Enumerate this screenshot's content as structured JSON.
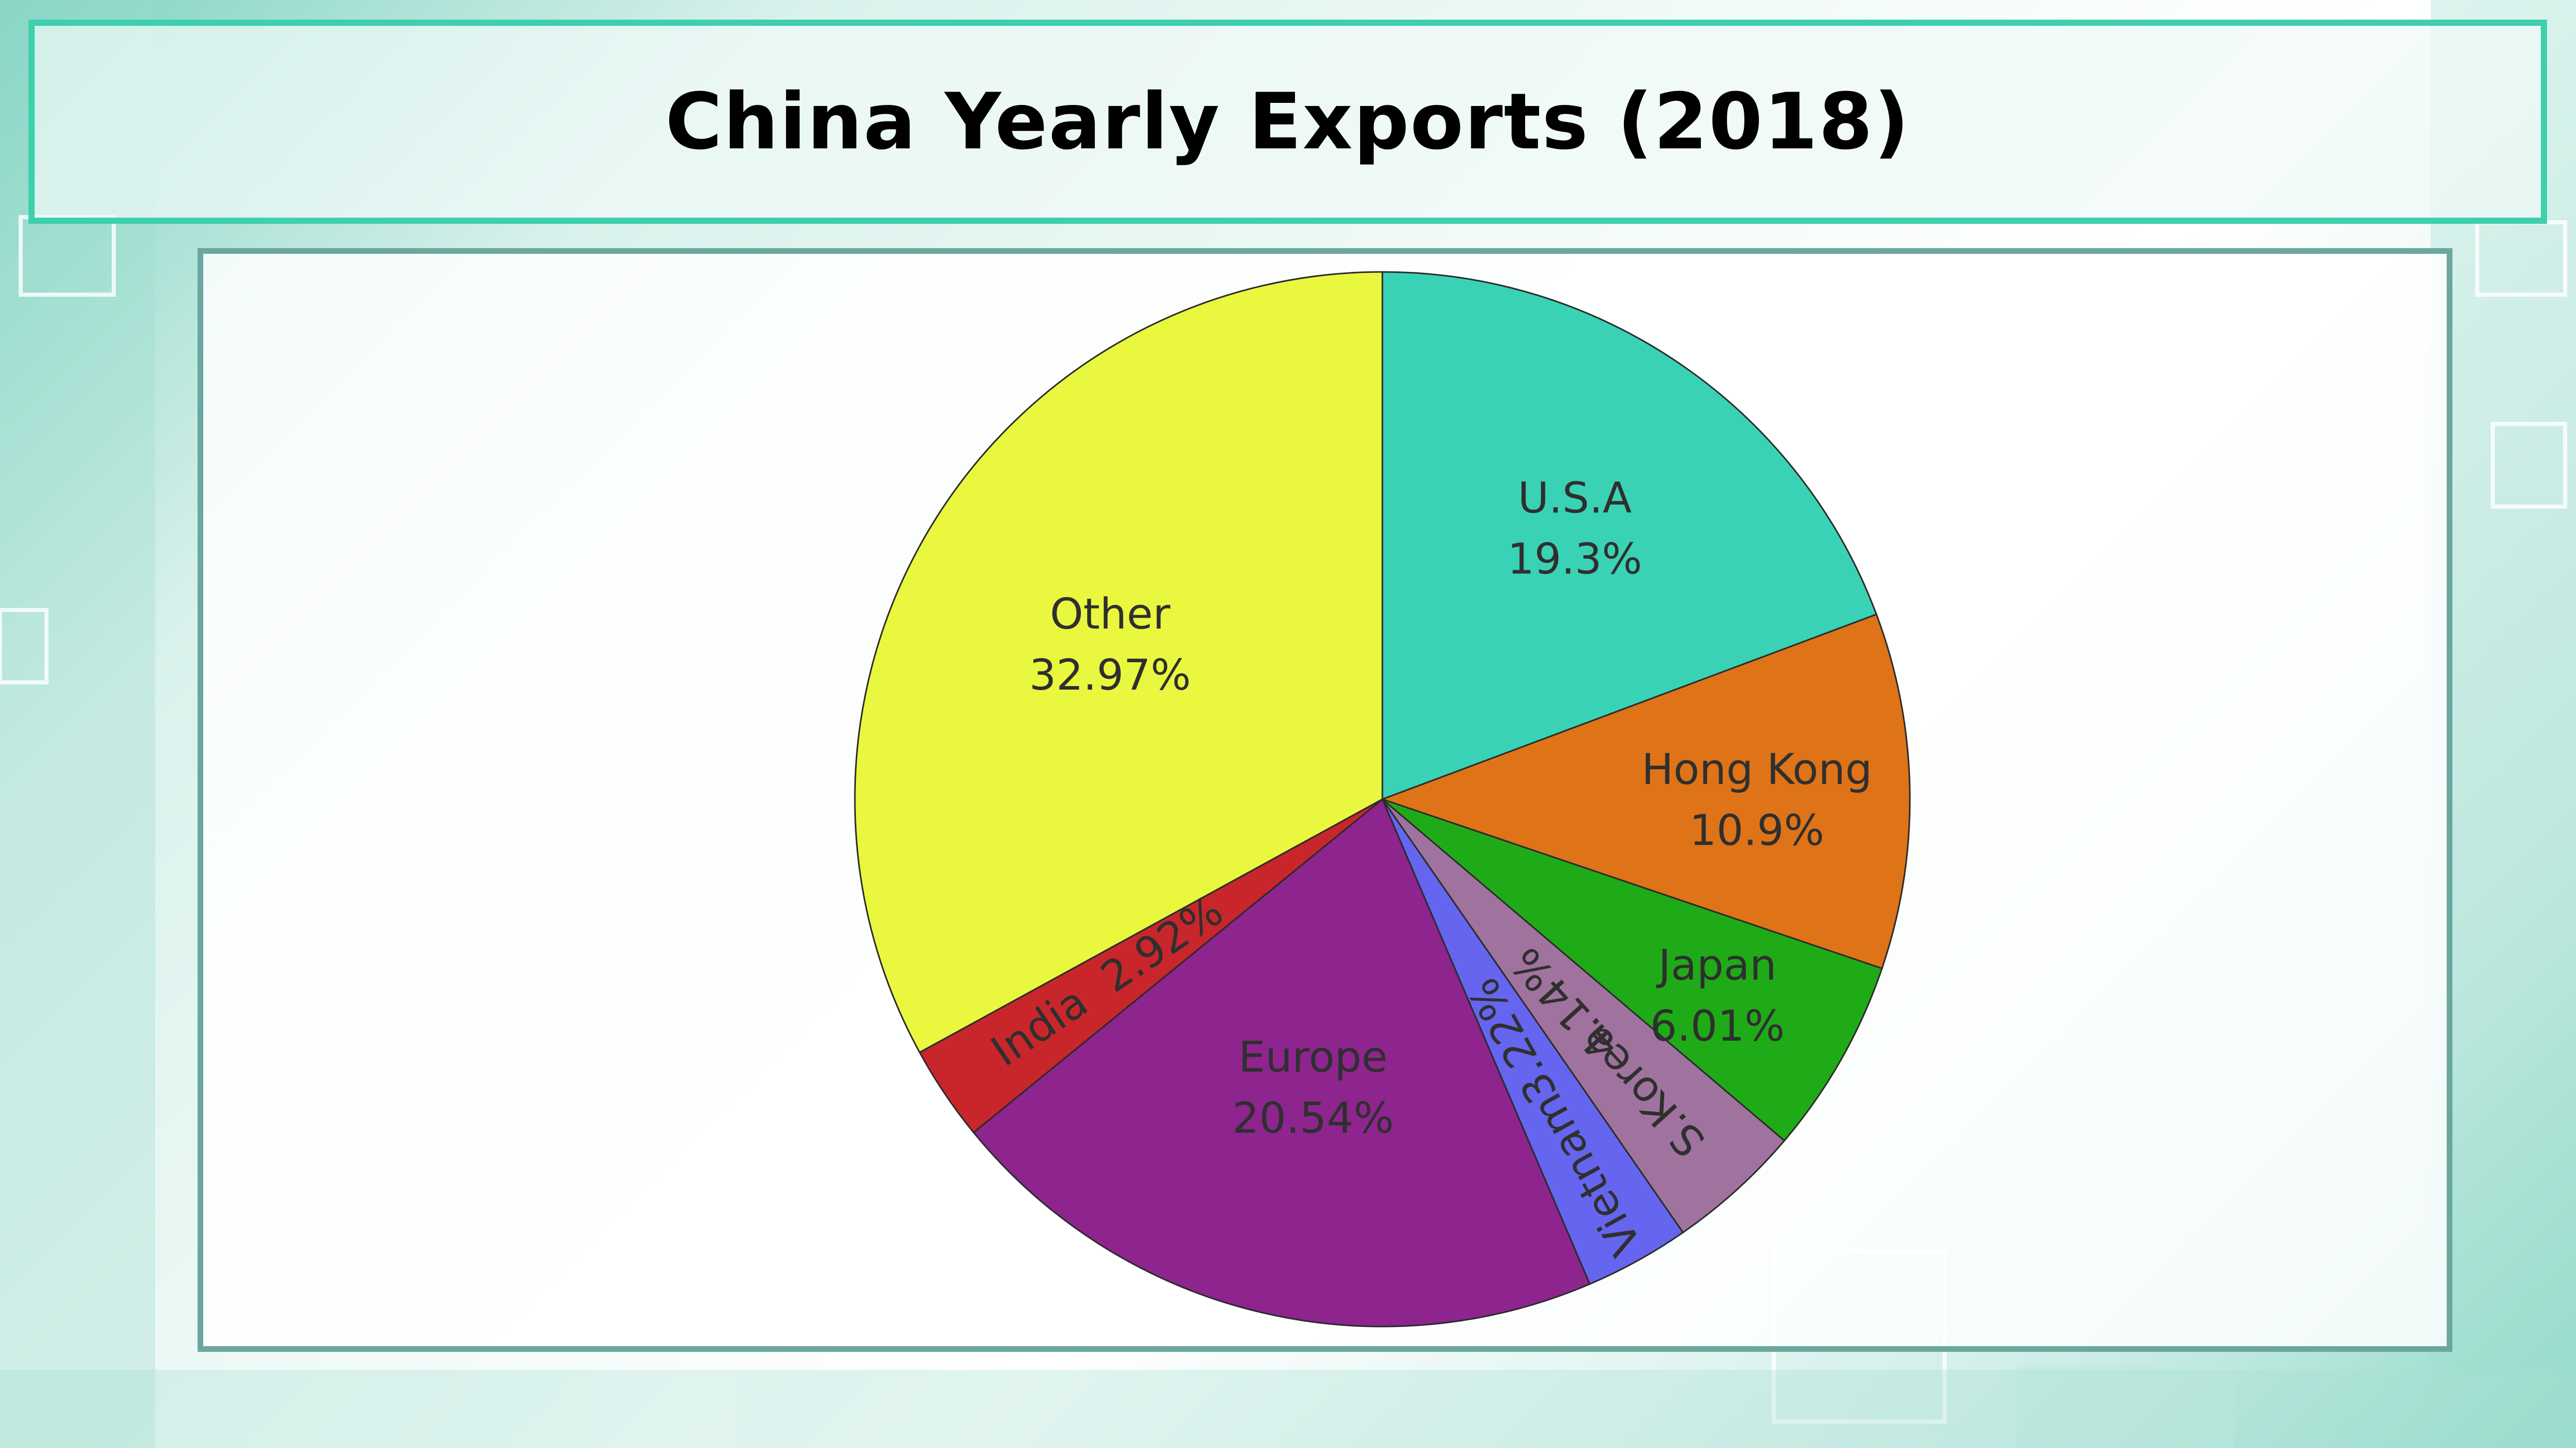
{
  "title": "China Yearly Exports (2018)",
  "chart_data": {
    "type": "pie",
    "start_angle": 90,
    "direction": "clockwise",
    "slices": [
      {
        "name": "U.S.A",
        "value": 19.3,
        "pct_label": "19.3%",
        "color": "#3ad2b5",
        "rotate_label": false,
        "name_r": 0.64,
        "pct_r": 0.64
      },
      {
        "name": "Hong Kong",
        "value": 10.9,
        "pct_label": "10.9%",
        "color": "#df7318",
        "rotate_label": false,
        "name_r": 0.71,
        "pct_r": 0.71
      },
      {
        "name": "Japan",
        "value": 6.01,
        "pct_label": "6.01%",
        "color": "#1fab17",
        "rotate_label": false,
        "name_r": 0.73,
        "pct_r": 0.73
      },
      {
        "name": "S.Korea",
        "value": 4.14,
        "pct_label": "4.14%",
        "color": "#a0739f",
        "rotate_label": true,
        "name_r": 0.74,
        "pct_r": 0.52
      },
      {
        "name": "Vietnam",
        "value": 3.22,
        "pct_label": "3.22%",
        "color": "#6565f0",
        "rotate_label": true,
        "name_r": 0.81,
        "pct_r": 0.52
      },
      {
        "name": "Europe",
        "value": 20.54,
        "pct_label": "20.54%",
        "color": "#8e248e",
        "rotate_label": false,
        "name_r": 0.55,
        "pct_r": 0.55
      },
      {
        "name": "India",
        "value": 2.92,
        "pct_label": "2.92%",
        "color": "#c8262b",
        "rotate_label": true,
        "name_r": 0.78,
        "pct_r": 0.5
      },
      {
        "name": "Other",
        "value": 32.97,
        "pct_label": "32.97%",
        "color": "#eaf73f",
        "rotate_label": false,
        "name_r": 0.6,
        "pct_r": 0.6
      }
    ]
  }
}
